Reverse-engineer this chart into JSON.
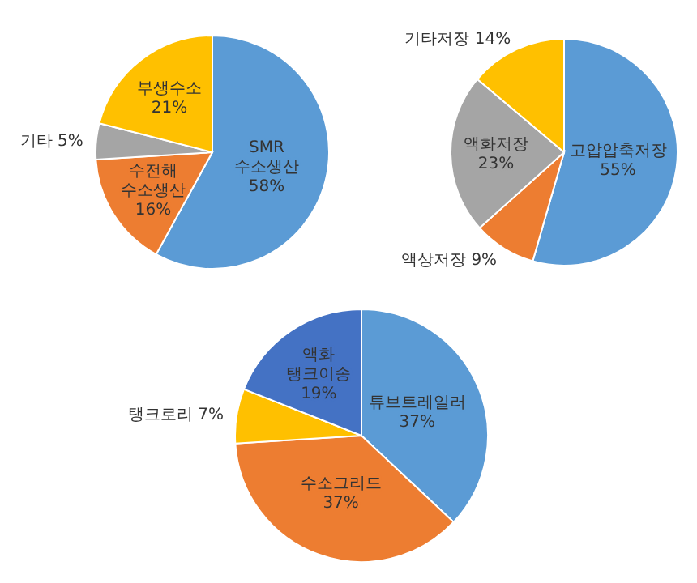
{
  "chart_data": [
    {
      "type": "pie",
      "categories": [
        "SMR 수소생산",
        "수전해 수소생산",
        "기타",
        "부생수소"
      ],
      "values": [
        58,
        16,
        5,
        21
      ],
      "value_labels": [
        "58%",
        "16%",
        "5%",
        "21%"
      ],
      "colors": [
        "#5b9bd5",
        "#ed7d31",
        "#a5a5a5",
        "#ffc000"
      ],
      "legend": false
    },
    {
      "type": "pie",
      "categories": [
        "고압압축저장",
        "액상저장",
        "액화저장",
        "기타저장"
      ],
      "values": [
        55,
        9,
        23,
        14
      ],
      "value_labels": [
        "55%",
        "9%",
        "23%",
        "14%"
      ],
      "colors": [
        "#5b9bd5",
        "#ed7d31",
        "#a5a5a5",
        "#ffc000"
      ],
      "legend": false
    },
    {
      "type": "pie",
      "categories": [
        "튜브트레일러",
        "수소그리드",
        "탱크로리",
        "액화 탱크이송"
      ],
      "values": [
        37,
        37,
        7,
        19
      ],
      "value_labels": [
        "37%",
        "37%",
        "7%",
        "19%"
      ],
      "colors": [
        "#5b9bd5",
        "#ed7d31",
        "#ffc000",
        "#4472c4"
      ],
      "legend": false
    }
  ]
}
